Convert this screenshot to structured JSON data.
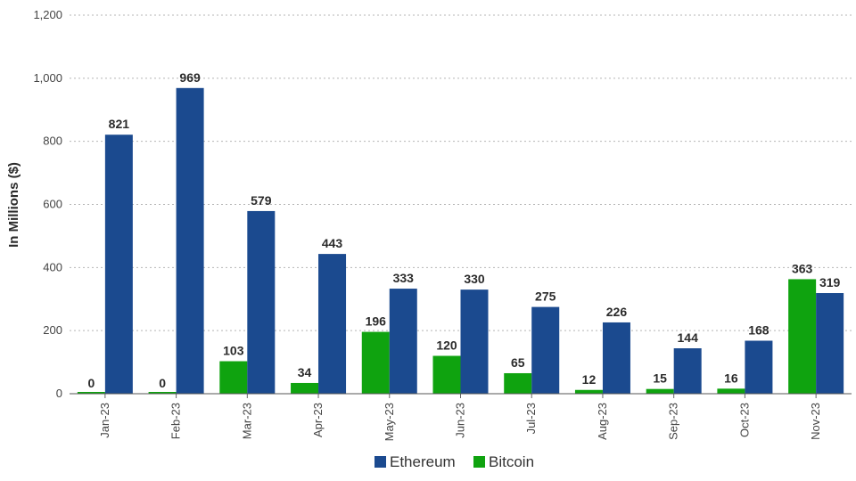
{
  "chart_data": {
    "type": "bar",
    "title": "",
    "xlabel": "",
    "ylabel": "In Millions ($)",
    "ylim": [
      0,
      1200
    ],
    "yticks": [
      0,
      200,
      400,
      600,
      800,
      1000,
      1200
    ],
    "ytick_labels": [
      "0",
      "200",
      "400",
      "600",
      "800",
      "1,000",
      "1,200"
    ],
    "grid": true,
    "legend_position": "bottom-center",
    "categories": [
      "Jan-23",
      "Feb-23",
      "Mar-23",
      "Apr-23",
      "May-23",
      "Jun-23",
      "Jul-23",
      "Aug-23",
      "Sep-23",
      "Oct-23",
      "Nov-23"
    ],
    "series": [
      {
        "name": "Bitcoin",
        "color": "#0fa30f",
        "values": [
          0,
          0,
          103,
          34,
          196,
          120,
          65,
          12,
          15,
          16,
          363
        ]
      },
      {
        "name": "Ethereum",
        "color": "#1b4a8f",
        "values": [
          821,
          969,
          579,
          443,
          333,
          330,
          275,
          226,
          144,
          168,
          319
        ]
      }
    ],
    "legend": [
      {
        "name": "Ethereum",
        "color": "#1b4a8f"
      },
      {
        "name": "Bitcoin",
        "color": "#0fa30f"
      }
    ]
  }
}
